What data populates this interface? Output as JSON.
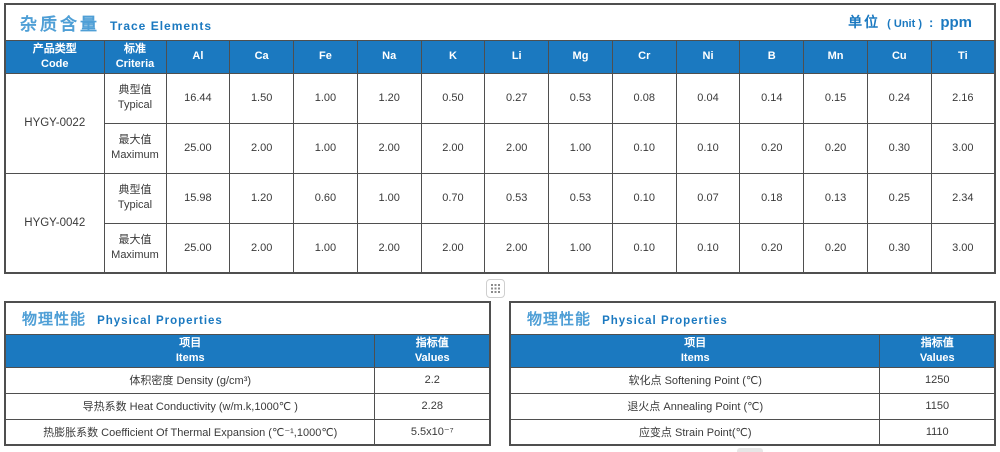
{
  "colors": {
    "header_blue": "#1b79c0",
    "title_cn_blue": "#4f9fd6",
    "title_en_blue": "#1b79c0",
    "border_gray": "#4f4f4f"
  },
  "trace": {
    "title_cn": "杂质含量",
    "title_en": "Trace Elements",
    "unit": {
      "cn": "单位",
      "paren": "( Unit )",
      "colon": ":",
      "value": "ppm"
    },
    "header": {
      "code_cn": "产品类型",
      "code_en": "Code",
      "criteria_cn": "标准",
      "criteria_en": "Criteria",
      "elements": [
        "Al",
        "Ca",
        "Fe",
        "Na",
        "K",
        "Li",
        "Mg",
        "Cr",
        "Ni",
        "B",
        "Mn",
        "Cu",
        "Ti"
      ]
    },
    "rows": [
      {
        "code": "HYGY-0022",
        "type_cn": "典型值",
        "type_en": "Typical",
        "values": [
          "16.44",
          "1.50",
          "1.00",
          "1.20",
          "0.50",
          "0.27",
          "0.53",
          "0.08",
          "0.04",
          "0.14",
          "0.15",
          "0.24",
          "2.16"
        ]
      },
      {
        "code": "HYGY-0022",
        "type_cn": "最大值",
        "type_en": "Maximum",
        "values": [
          "25.00",
          "2.00",
          "1.00",
          "2.00",
          "2.00",
          "2.00",
          "1.00",
          "0.10",
          "0.10",
          "0.20",
          "0.20",
          "0.30",
          "3.00"
        ]
      },
      {
        "code": "HYGY-0042",
        "type_cn": "典型值",
        "type_en": "Typical",
        "values": [
          "15.98",
          "1.20",
          "0.60",
          "1.00",
          "0.70",
          "0.53",
          "0.53",
          "0.10",
          "0.07",
          "0.18",
          "0.13",
          "0.25",
          "2.34"
        ]
      },
      {
        "code": "HYGY-0042",
        "type_cn": "最大值",
        "type_en": "Maximum",
        "values": [
          "25.00",
          "2.00",
          "1.00",
          "2.00",
          "2.00",
          "2.00",
          "1.00",
          "0.10",
          "0.10",
          "0.20",
          "0.20",
          "0.30",
          "3.00"
        ]
      }
    ]
  },
  "physical": {
    "left": {
      "title_cn": "物理性能",
      "title_en": "Physical Properties",
      "items_cn": "项目",
      "items_en": "Items",
      "values_cn": "指标值",
      "values_en": "Values",
      "rows": [
        {
          "item": "体积密度 Density (g/cm³)",
          "value": "2.2"
        },
        {
          "item": "导热系数 Heat Conductivity (w/m.k,1000℃ )",
          "value": "2.28"
        },
        {
          "item": "热膨胀系数 Coefficient Of Thermal Expansion (℃⁻¹,1000℃)",
          "value": "5.5x10⁻⁷"
        }
      ]
    },
    "right": {
      "title_cn": "物理性能",
      "title_en": "Physical Properties",
      "items_cn": "项目",
      "items_en": "Items",
      "values_cn": "指标值",
      "values_en": "Values",
      "rows": [
        {
          "item": "软化点 Softening Point (℃)",
          "value": "1250"
        },
        {
          "item": "退火点 Annealing Point (℃)",
          "value": "1150"
        },
        {
          "item": "应变点 Strain Point(℃)",
          "value": "1110"
        }
      ]
    }
  }
}
